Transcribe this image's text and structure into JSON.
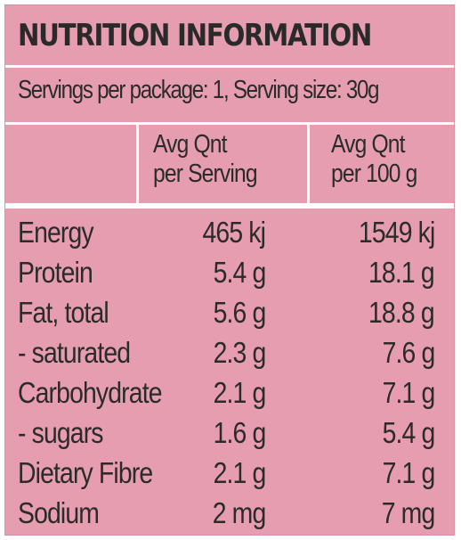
{
  "title": "NUTRITION INFORMATION",
  "serving_info": "Servings per package: 1, Serving size: 30g",
  "columns": {
    "per_serving": [
      "Avg Qnt",
      "per Serving"
    ],
    "per_100g": [
      "Avg Qnt",
      "per 100 g"
    ]
  },
  "rows": [
    {
      "name": "Energy",
      "per_serving": "465 kj",
      "per_100g": "1549 kj"
    },
    {
      "name": "Protein",
      "per_serving": "5.4 g",
      "per_100g": "18.1 g"
    },
    {
      "name": "Fat, total",
      "per_serving": "5.6 g",
      "per_100g": "18.8 g"
    },
    {
      "name": " - saturated",
      "per_serving": "2.3 g",
      "per_100g": "7.6 g"
    },
    {
      "name": "Carbohydrate",
      "per_serving": "2.1 g",
      "per_100g": "7.1 g"
    },
    {
      "name": " - sugars",
      "per_serving": "1.6 g",
      "per_100g": "5.4 g"
    },
    {
      "name": "Dietary Fibre",
      "per_serving": "2.1 g",
      "per_100g": "7.1 g"
    },
    {
      "name": "Sodium",
      "per_serving": "2 mg",
      "per_100g": "7 mg"
    }
  ],
  "colors": {
    "panel": "#e79db0",
    "lines": "#ffffff",
    "text": "#2b2b2b"
  }
}
